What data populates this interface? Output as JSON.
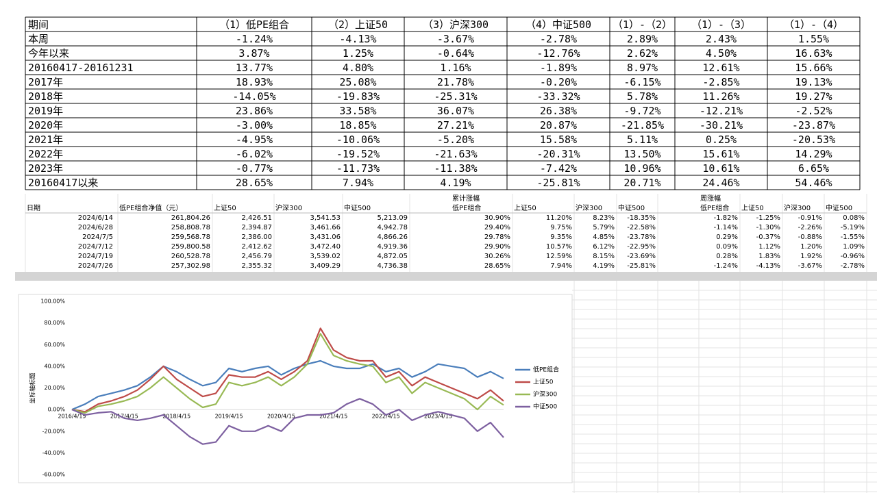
{
  "top_table": {
    "header": [
      "期间",
      "（1）低PE组合",
      "（2）上证50",
      "（3）沪深300",
      "（4）中证500",
      "（1）-（2）",
      "（1）-（3）",
      "（1）-（4）"
    ],
    "rows": [
      [
        "本周",
        "-1.24%",
        "-4.13%",
        "-3.67%",
        "-2.78%",
        "2.89%",
        "2.43%",
        "1.55%"
      ],
      [
        "今年以来",
        "3.87%",
        "1.25%",
        "-0.64%",
        "-12.76%",
        "2.62%",
        "4.50%",
        "16.63%"
      ],
      [
        "20160417-20161231",
        "13.77%",
        "4.80%",
        "1.16%",
        "-1.89%",
        "8.97%",
        "12.61%",
        "15.66%"
      ],
      [
        "2017年",
        "18.93%",
        "25.08%",
        "21.78%",
        "-0.20%",
        "-6.15%",
        "-2.85%",
        "19.13%"
      ],
      [
        "2018年",
        "-14.05%",
        "-19.83%",
        "-25.31%",
        "-33.32%",
        "5.78%",
        "11.26%",
        "19.27%"
      ],
      [
        "2019年",
        "23.86%",
        "33.58%",
        "36.07%",
        "26.38%",
        "-9.72%",
        "-12.21%",
        "-2.52%"
      ],
      [
        "2020年",
        "-3.00%",
        "18.85%",
        "27.21%",
        "20.87%",
        "-21.85%",
        "-30.21%",
        "-23.87%"
      ],
      [
        "2021年",
        "-4.95%",
        "-10.06%",
        "-5.20%",
        "15.58%",
        "5.11%",
        "0.25%",
        "-20.53%"
      ],
      [
        "2022年",
        "-6.02%",
        "-19.52%",
        "-21.63%",
        "-20.31%",
        "13.50%",
        "15.61%",
        "14.29%"
      ],
      [
        "2023年",
        "-0.77%",
        "-11.73%",
        "-11.38%",
        "-7.42%",
        "10.96%",
        "10.61%",
        "6.65%"
      ],
      [
        "20160417以来",
        "28.65%",
        "7.94%",
        "4.19%",
        "-25.81%",
        "20.71%",
        "24.46%",
        "54.46%"
      ]
    ]
  },
  "weekly_table": {
    "group_headers": [
      "累计涨幅",
      "周涨幅"
    ],
    "header": [
      "日期",
      "低PE组合净值（元）",
      "上证50",
      "沪深300",
      "中证500",
      "低PE组合",
      "上证50",
      "沪深300",
      "中证500",
      "低PE组合",
      "上证50",
      "沪深300",
      "中证500"
    ],
    "rows": [
      [
        "2024/6/14",
        "261,804.26",
        "2,426.51",
        "3,541.53",
        "5,213.09",
        "30.90%",
        "11.20%",
        "8.23%",
        "-18.35%",
        "-1.82%",
        "-1.25%",
        "-0.91%",
        "0.08%"
      ],
      [
        "2024/6/28",
        "258,808.78",
        "2,394.87",
        "3,461.66",
        "4,942.78",
        "29.40%",
        "9.75%",
        "5.79%",
        "-22.58%",
        "-1.14%",
        "-1.30%",
        "-2.26%",
        "-5.19%"
      ],
      [
        "2024/7/5",
        "259,568.78",
        "2,386.00",
        "3,431.06",
        "4,866.26",
        "29.78%",
        "9.35%",
        "4.85%",
        "-23.78%",
        "0.29%",
        "-0.37%",
        "-0.88%",
        "-1.55%"
      ],
      [
        "2024/7/12",
        "259,800.58",
        "2,412.62",
        "3,472.40",
        "4,919.36",
        "29.90%",
        "10.57%",
        "6.12%",
        "-22.95%",
        "0.09%",
        "1.12%",
        "1.20%",
        "1.09%"
      ],
      [
        "2024/7/19",
        "260,528.78",
        "2,456.79",
        "3,539.02",
        "4,872.05",
        "30.26%",
        "12.59%",
        "8.15%",
        "-23.69%",
        "0.28%",
        "1.83%",
        "1.92%",
        "-0.96%"
      ],
      [
        "2024/7/26",
        "257,302.98",
        "2,355.32",
        "3,409.29",
        "4,736.38",
        "28.65%",
        "7.94%",
        "4.19%",
        "-25.81%",
        "-1.24%",
        "-4.13%",
        "-3.67%",
        "-2.78%"
      ]
    ]
  },
  "chart_data": {
    "type": "line",
    "y_label": "坐标轴标题",
    "grid": false,
    "x": [
      "2016/4/15",
      "2016/7/15",
      "2016/10/15",
      "2017/1/15",
      "2017/4/15",
      "2017/7/15",
      "2017/10/15",
      "2018/1/15",
      "2018/4/15",
      "2018/7/15",
      "2018/10/15",
      "2019/1/15",
      "2019/4/15",
      "2019/7/15",
      "2019/10/15",
      "2020/1/15",
      "2020/4/15",
      "2020/7/15",
      "2020/10/15",
      "2021/1/15",
      "2021/4/15",
      "2021/7/15",
      "2021/10/15",
      "2022/1/15",
      "2022/4/15",
      "2022/7/15",
      "2022/10/15",
      "2023/1/15",
      "2023/4/15",
      "2023/7/15",
      "2023/10/15",
      "2024/1/15",
      "2024/4/15",
      "2024/7/26"
    ],
    "xticks": [
      "2016/4/15",
      "2017/4/15",
      "2018/4/15",
      "2019/4/15",
      "2020/4/15",
      "2021/4/15",
      "2022/4/15",
      "2023/4/15"
    ],
    "ylim": [
      -60,
      100
    ],
    "yticks": [
      {
        "value": -60,
        "label": "-60.00%"
      },
      {
        "value": -40,
        "label": "-40.00%"
      },
      {
        "value": -20,
        "label": "-20.00%"
      },
      {
        "value": 0,
        "label": "0.00%"
      },
      {
        "value": 20,
        "label": "20.00%"
      },
      {
        "value": 40,
        "label": "40.00%"
      },
      {
        "value": 60,
        "label": "60.00%"
      },
      {
        "value": 80,
        "label": "80.00%"
      },
      {
        "value": 100,
        "label": "100.00%"
      }
    ],
    "series": [
      {
        "name": "低PE组合",
        "color": "#4a7ebb",
        "values": [
          0,
          5,
          12,
          15,
          18,
          22,
          30,
          40,
          35,
          28,
          22,
          25,
          38,
          35,
          38,
          40,
          32,
          38,
          42,
          45,
          40,
          38,
          38,
          42,
          35,
          38,
          30,
          35,
          42,
          40,
          38,
          30,
          35,
          28.65
        ]
      },
      {
        "name": "上证50",
        "color": "#be4b48",
        "values": [
          0,
          -2,
          5,
          8,
          12,
          18,
          28,
          40,
          28,
          20,
          12,
          15,
          32,
          30,
          30,
          35,
          28,
          35,
          45,
          75,
          55,
          48,
          45,
          45,
          30,
          35,
          22,
          30,
          25,
          20,
          15,
          10,
          18,
          7.94
        ]
      },
      {
        "name": "沪深300",
        "color": "#98b954",
        "values": [
          0,
          -3,
          3,
          5,
          8,
          12,
          20,
          30,
          20,
          10,
          2,
          5,
          25,
          22,
          25,
          30,
          22,
          30,
          42,
          70,
          50,
          45,
          42,
          40,
          25,
          30,
          15,
          25,
          20,
          15,
          10,
          0,
          12,
          4.19
        ]
      },
      {
        "name": "中证500",
        "color": "#7d60a0",
        "values": [
          0,
          -5,
          -3,
          -2,
          -8,
          -10,
          -8,
          -5,
          -15,
          -25,
          -32,
          -30,
          -15,
          -20,
          -20,
          -15,
          -20,
          -8,
          -5,
          -5,
          -3,
          5,
          10,
          5,
          -5,
          0,
          -10,
          -5,
          -2,
          -5,
          -8,
          -20,
          -12,
          -25.81
        ]
      }
    ]
  }
}
